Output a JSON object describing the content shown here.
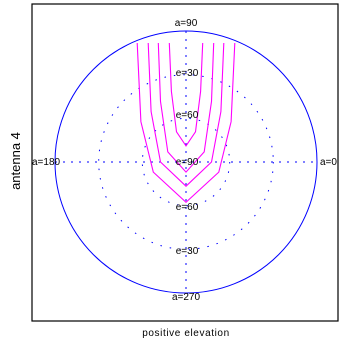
{
  "chart_data": {
    "type": "polar",
    "ylabel": "antenna 4",
    "xlabel": "positive elevation",
    "azimuth_labels": [
      "a=0",
      "a=90",
      "a=180",
      "a=270"
    ],
    "azimuth_values_deg": [
      0,
      90,
      180,
      270
    ],
    "elevation_labels": [
      "e=30",
      "e=60",
      "e=90",
      "e=60",
      "e=30"
    ],
    "elevation_rings_deg": [
      30,
      60
    ],
    "elevation_max_deg": 90,
    "grid": true,
    "series": [
      {
        "color": "#ff00ff",
        "curves": [
          {
            "points": [
              [
                157,
                1
              ],
              [
                160,
                25
              ],
              [
                167,
                45
              ],
              [
                180,
                52
              ],
              [
                193,
                45
              ],
              [
                200,
                25
              ],
              [
                203,
                1
              ]
            ]
          },
          {
            "points": [
              [
                142,
                1
              ],
              [
                145,
                30
              ],
              [
                155,
                55
              ],
              [
                180,
                65
              ],
              [
                205,
                55
              ],
              [
                215,
                30
              ],
              [
                218,
                1
              ]
            ]
          },
          {
            "points": [
              [
                128,
                1
              ],
              [
                132,
                35
              ],
              [
                145,
                60
              ],
              [
                180,
                72
              ],
              [
                215,
                60
              ],
              [
                228,
                35
              ],
              [
                232,
                1
              ]
            ]
          },
          {
            "points": [
              [
                113,
                1
              ],
              [
                118,
                40
              ],
              [
                135,
                65
              ],
              [
                180,
                80
              ],
              [
                225,
                65
              ],
              [
                242,
                40
              ],
              [
                247,
                1
              ]
            ]
          }
        ]
      }
    ],
    "colors": {
      "outer_circle": "#0000ff",
      "grid": "#0000ff",
      "contours": "#ff00ff",
      "frame": "#000000"
    }
  }
}
